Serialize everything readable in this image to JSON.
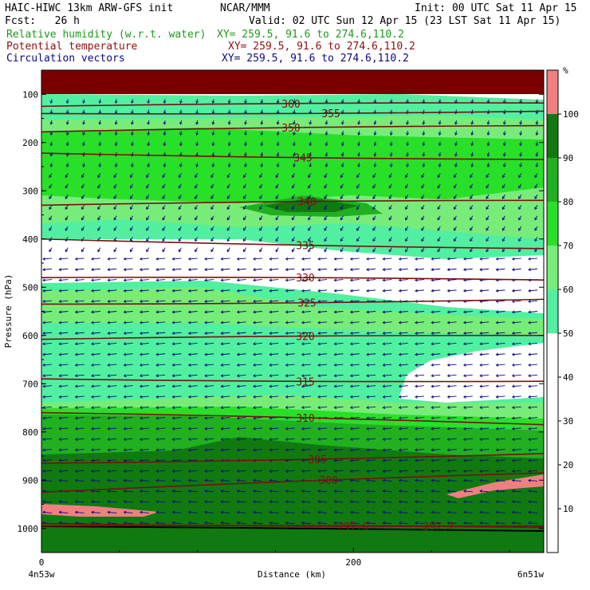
{
  "header": {
    "model_line": "HAIC-HIWC 13km ARW-GFS init",
    "org": "NCAR/MMM",
    "init": "Init: 00 UTC Sat 11 Apr 15",
    "fcst": "Fcst:   26 h",
    "valid": "Valid: 02 UTC Sun 12 Apr 15 (23 LST Sat 11 Apr 15)",
    "fields": [
      {
        "name": "Relative humidity (w.r.t. water)",
        "xy": "XY= 259.5, 91.6 to 274.6,110.2",
        "color": "#1c9a1c"
      },
      {
        "name": "Potential temperature",
        "xy": "XY= 259.5, 91.6 to 274.6,110.2",
        "color": "#8b1010"
      },
      {
        "name": "Circulation vectors",
        "xy": "XY= 259.5, 91.6 to 274.6,110.2",
        "color": "#0a0a80"
      }
    ]
  },
  "chart_data": {
    "type": "heatmap",
    "title": "Relative humidity (w.r.t. water)",
    "xlabel": "Distance (km)",
    "ylabel": "Pressure (hPa)",
    "x_ticks": [
      "0",
      "200"
    ],
    "x_range_km": [
      0,
      322
    ],
    "y_range_hPa": [
      50,
      1050
    ],
    "y_ticks": [
      "100",
      "200",
      "300",
      "400",
      "500",
      "600",
      "700",
      "800",
      "900",
      "1000"
    ],
    "endpoints": {
      "left": "4n53w",
      "right": "6n51w"
    },
    "colorbar": {
      "unit": "%",
      "labels": [
        "10",
        "20",
        "30",
        "40",
        "50",
        "60",
        "70",
        "80",
        "90",
        "100"
      ],
      "levels": [
        50,
        60,
        70,
        80,
        90,
        100
      ],
      "colors": [
        "#ffffff",
        "#50f0a0",
        "#78ec78",
        "#28e028",
        "#20b020",
        "#107a10",
        "#f08080"
      ]
    },
    "theta_contours": [
      {
        "label": "360",
        "p_left": 125,
        "p_right": 118
      },
      {
        "label": "355",
        "p_left": 140,
        "p_right": 135
      },
      {
        "label": "350",
        "p_left": 178,
        "p_right": 165
      },
      {
        "label": "345",
        "p_left": 222,
        "p_right": 235
      },
      {
        "label": "340",
        "p_left": 330,
        "p_right": 320
      },
      {
        "label": "335",
        "p_left": 400,
        "p_right": 420
      },
      {
        "label": "330",
        "p_left": 480,
        "p_right": 485
      },
      {
        "label": "325",
        "p_left": 535,
        "p_right": 525
      },
      {
        "label": "320",
        "p_left": 608,
        "p_right": 600
      },
      {
        "label": "315",
        "p_left": 690,
        "p_right": 695
      },
      {
        "label": "310",
        "p_left": 760,
        "p_right": 785
      },
      {
        "label": "305",
        "p_left": 865,
        "p_right": 845
      },
      {
        "label": "300",
        "p_left": 925,
        "p_right": 885
      },
      {
        "label": "297.6",
        "p_left": 990,
        "p_right": 995
      },
      {
        "label": "297.7",
        "p_left": 995,
        "p_right": 998
      }
    ]
  }
}
